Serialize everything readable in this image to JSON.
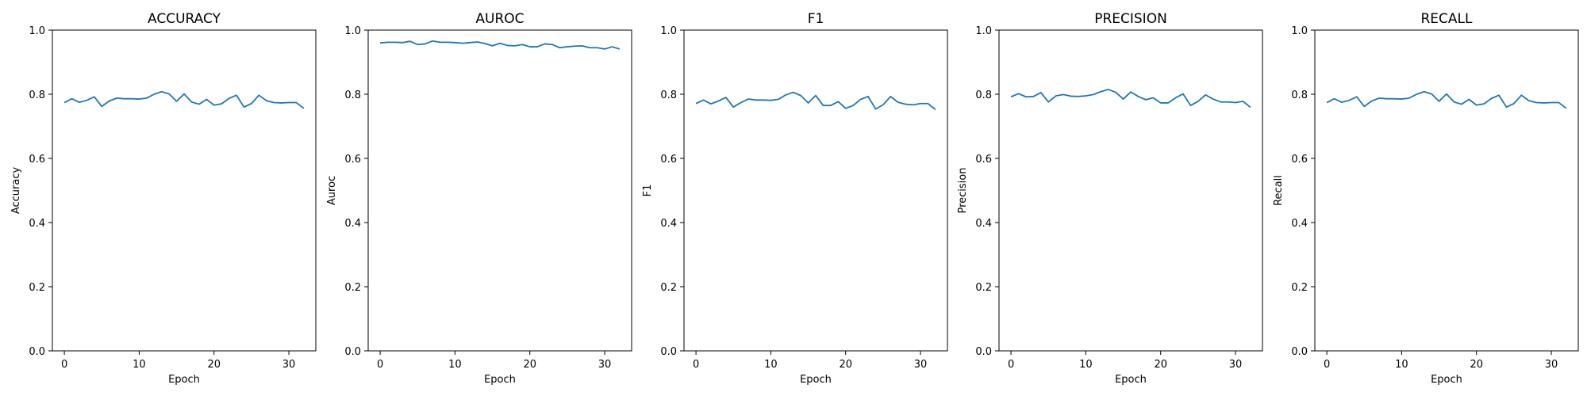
{
  "style": {
    "line_color": "#1f77b4"
  },
  "chart_data": [
    {
      "type": "line",
      "title": "ACCURACY",
      "xlabel": "Epoch",
      "ylabel": "Accuracy",
      "xlim": [
        -1.6,
        33.6
      ],
      "ylim": [
        0.0,
        1.0
      ],
      "xticks": [
        0,
        10,
        20,
        30
      ],
      "yticks": [
        0.0,
        0.2,
        0.4,
        0.6,
        0.8,
        1.0
      ],
      "grid": false,
      "x": [
        0,
        1,
        2,
        3,
        4,
        5,
        6,
        7,
        8,
        9,
        10,
        11,
        12,
        13,
        14,
        15,
        16,
        17,
        18,
        19,
        20,
        21,
        22,
        23,
        24,
        25,
        26,
        27,
        28,
        29,
        30,
        31,
        32
      ],
      "series": [
        {
          "values": [
            0.774,
            0.786,
            0.775,
            0.781,
            0.792,
            0.762,
            0.779,
            0.788,
            0.786,
            0.786,
            0.785,
            0.788,
            0.8,
            0.808,
            0.801,
            0.778,
            0.801,
            0.776,
            0.769,
            0.784,
            0.766,
            0.77,
            0.787,
            0.797,
            0.76,
            0.771,
            0.797,
            0.78,
            0.774,
            0.773,
            0.774,
            0.774,
            0.756
          ]
        }
      ]
    },
    {
      "type": "line",
      "title": "AUROC",
      "xlabel": "Epoch",
      "ylabel": "Auroc",
      "xlim": [
        -1.6,
        33.6
      ],
      "ylim": [
        0.0,
        1.0
      ],
      "xticks": [
        0,
        10,
        20,
        30
      ],
      "yticks": [
        0.0,
        0.2,
        0.4,
        0.6,
        0.8,
        1.0
      ],
      "grid": false,
      "x": [
        0,
        1,
        2,
        3,
        4,
        5,
        6,
        7,
        8,
        9,
        10,
        11,
        12,
        13,
        14,
        15,
        16,
        17,
        18,
        19,
        20,
        21,
        22,
        23,
        24,
        25,
        26,
        27,
        28,
        29,
        30,
        31,
        32
      ],
      "series": [
        {
          "values": [
            0.96,
            0.962,
            0.962,
            0.961,
            0.965,
            0.955,
            0.957,
            0.966,
            0.962,
            0.962,
            0.961,
            0.959,
            0.961,
            0.963,
            0.958,
            0.951,
            0.959,
            0.952,
            0.951,
            0.955,
            0.948,
            0.948,
            0.957,
            0.955,
            0.945,
            0.948,
            0.95,
            0.951,
            0.945,
            0.945,
            0.941,
            0.948,
            0.941
          ]
        }
      ]
    },
    {
      "type": "line",
      "title": "F1",
      "xlabel": "Epoch",
      "ylabel": "F1",
      "xlim": [
        -1.6,
        33.6
      ],
      "ylim": [
        0.0,
        1.0
      ],
      "xticks": [
        0,
        10,
        20,
        30
      ],
      "yticks": [
        0.0,
        0.2,
        0.4,
        0.6,
        0.8,
        1.0
      ],
      "grid": false,
      "x": [
        0,
        1,
        2,
        3,
        4,
        5,
        6,
        7,
        8,
        9,
        10,
        11,
        12,
        13,
        14,
        15,
        16,
        17,
        18,
        19,
        20,
        21,
        22,
        23,
        24,
        25,
        26,
        27,
        28,
        29,
        30,
        31,
        32
      ],
      "series": [
        {
          "values": [
            0.771,
            0.782,
            0.77,
            0.779,
            0.79,
            0.76,
            0.774,
            0.785,
            0.782,
            0.782,
            0.781,
            0.784,
            0.798,
            0.806,
            0.796,
            0.773,
            0.796,
            0.765,
            0.765,
            0.777,
            0.756,
            0.765,
            0.784,
            0.793,
            0.754,
            0.767,
            0.793,
            0.775,
            0.769,
            0.767,
            0.771,
            0.771,
            0.752
          ]
        }
      ]
    },
    {
      "type": "line",
      "title": "PRECISION",
      "xlabel": "Epoch",
      "ylabel": "Precision",
      "xlim": [
        -1.6,
        33.6
      ],
      "ylim": [
        0.0,
        1.0
      ],
      "xticks": [
        0,
        10,
        20,
        30
      ],
      "yticks": [
        0.0,
        0.2,
        0.4,
        0.6,
        0.8,
        1.0
      ],
      "grid": false,
      "x": [
        0,
        1,
        2,
        3,
        4,
        5,
        6,
        7,
        8,
        9,
        10,
        11,
        12,
        13,
        14,
        15,
        16,
        17,
        18,
        19,
        20,
        21,
        22,
        23,
        24,
        25,
        26,
        27,
        28,
        29,
        30,
        31,
        32
      ],
      "series": [
        {
          "values": [
            0.792,
            0.802,
            0.792,
            0.793,
            0.805,
            0.776,
            0.795,
            0.799,
            0.794,
            0.793,
            0.795,
            0.799,
            0.808,
            0.815,
            0.806,
            0.785,
            0.807,
            0.793,
            0.783,
            0.789,
            0.773,
            0.773,
            0.789,
            0.801,
            0.765,
            0.778,
            0.798,
            0.785,
            0.776,
            0.776,
            0.774,
            0.778,
            0.759
          ]
        }
      ]
    },
    {
      "type": "line",
      "title": "RECALL",
      "xlabel": "Epoch",
      "ylabel": "Recall",
      "xlim": [
        -1.6,
        33.6
      ],
      "ylim": [
        0.0,
        1.0
      ],
      "xticks": [
        0,
        10,
        20,
        30
      ],
      "yticks": [
        0.0,
        0.2,
        0.4,
        0.6,
        0.8,
        1.0
      ],
      "grid": false,
      "x": [
        0,
        1,
        2,
        3,
        4,
        5,
        6,
        7,
        8,
        9,
        10,
        11,
        12,
        13,
        14,
        15,
        16,
        17,
        18,
        19,
        20,
        21,
        22,
        23,
        24,
        25,
        26,
        27,
        28,
        29,
        30,
        31,
        32
      ],
      "series": [
        {
          "values": [
            0.774,
            0.786,
            0.775,
            0.781,
            0.792,
            0.762,
            0.779,
            0.788,
            0.786,
            0.786,
            0.785,
            0.788,
            0.8,
            0.808,
            0.801,
            0.778,
            0.801,
            0.776,
            0.769,
            0.784,
            0.766,
            0.77,
            0.787,
            0.797,
            0.76,
            0.771,
            0.797,
            0.78,
            0.774,
            0.773,
            0.774,
            0.774,
            0.756
          ]
        }
      ]
    }
  ]
}
